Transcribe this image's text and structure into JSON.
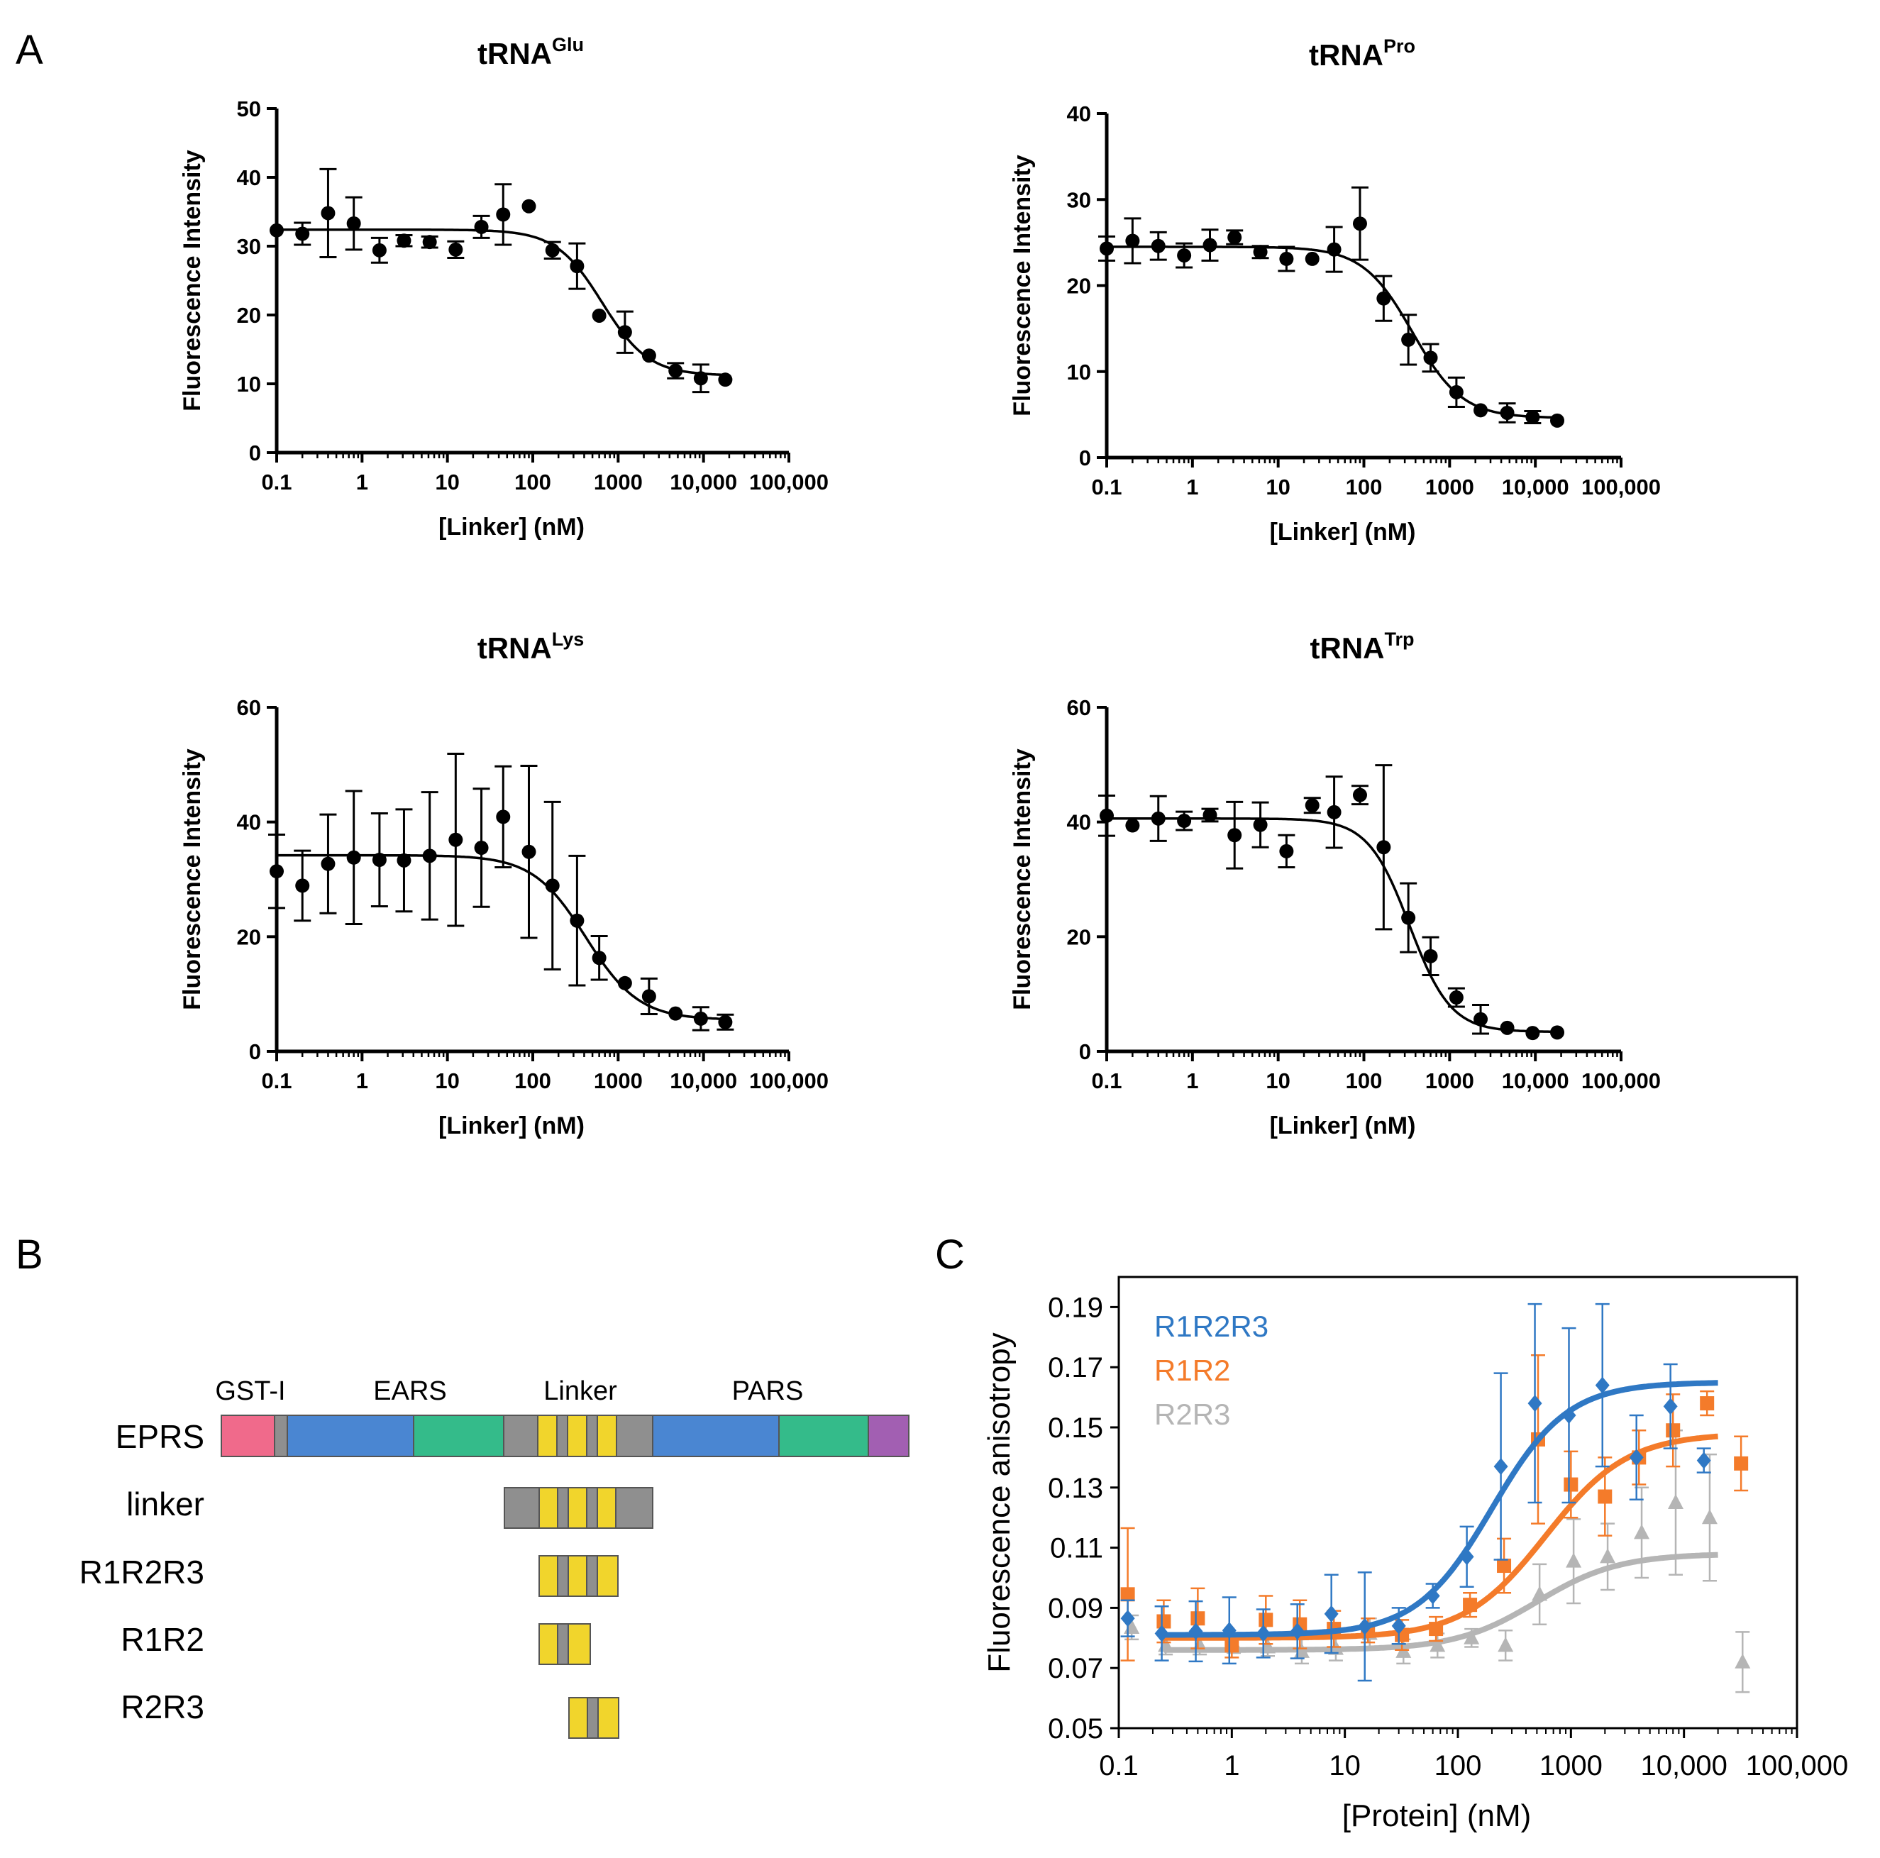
{
  "panel_labels": {
    "a": "A",
    "b": "B",
    "c": "C"
  },
  "colors": {
    "gst": "#f06a8b",
    "ears_blue": "#4a86d2",
    "ears_green": "#34bb8a",
    "linker_gray": "#8f8f8f",
    "repeat_yellow": "#f1d52c",
    "pars_purple": "#a25fb2",
    "r1r2r3": "#2f78c4",
    "r1r2": "#f47b2a",
    "r2r3": "#b5b5b5"
  },
  "chart_data": [
    {
      "id": "glu",
      "type": "scatter",
      "title": {
        "main": "tRNA",
        "sup": "Glu"
      },
      "xlabel": "[Linker] (nM)",
      "ylabel": "Fluorescence Intensity",
      "xscale": "log",
      "xlim": [
        0.1,
        100000
      ],
      "ylim": [
        0,
        50
      ],
      "yticks": [
        0,
        10,
        20,
        30,
        40,
        50
      ],
      "xticks": [
        0.1,
        1,
        10,
        100,
        1000,
        10000,
        100000
      ],
      "xtick_labels": [
        "0.1",
        "1",
        "10",
        "100",
        "1000",
        "10,000",
        "100,000"
      ],
      "points": [
        {
          "x": 0.1,
          "y": 32.3
        },
        {
          "x": 0.2,
          "y": 31.8,
          "err": 1.6
        },
        {
          "x": 0.4,
          "y": 34.8,
          "err": 6.4
        },
        {
          "x": 0.8,
          "y": 33.3,
          "err": 3.8
        },
        {
          "x": 1.6,
          "y": 29.4,
          "err": 1.8
        },
        {
          "x": 3.1,
          "y": 30.8,
          "err": 0.8
        },
        {
          "x": 6.2,
          "y": 30.6,
          "err": 0.8
        },
        {
          "x": 12.5,
          "y": 29.5,
          "err": 1.2
        },
        {
          "x": 25,
          "y": 32.8,
          "err": 1.6
        },
        {
          "x": 45,
          "y": 34.6,
          "err": 4.4
        },
        {
          "x": 90,
          "y": 35.8
        },
        {
          "x": 170,
          "y": 29.4,
          "err": 1.2
        },
        {
          "x": 330,
          "y": 27.1,
          "err": 3.3
        },
        {
          "x": 600,
          "y": 19.9
        },
        {
          "x": 1200,
          "y": 17.5,
          "err": 3.0
        },
        {
          "x": 2300,
          "y": 14.1
        },
        {
          "x": 4700,
          "y": 11.9,
          "err": 1.1
        },
        {
          "x": 9300,
          "y": 10.8,
          "err": 2.0
        },
        {
          "x": 18000,
          "y": 10.6
        }
      ],
      "fit": {
        "top": 32.4,
        "bottom": 11.2,
        "ic50": 650,
        "hill": 1.6
      }
    },
    {
      "id": "pro",
      "type": "scatter",
      "title": {
        "main": "tRNA",
        "sup": "Pro"
      },
      "xlabel": "[Linker] (nM)",
      "ylabel": "Fluorescence Intensity",
      "xscale": "log",
      "xlim": [
        0.1,
        100000
      ],
      "ylim": [
        0,
        40
      ],
      "yticks": [
        0,
        10,
        20,
        30,
        40
      ],
      "xticks": [
        0.1,
        1,
        10,
        100,
        1000,
        10000,
        100000
      ],
      "xtick_labels": [
        "0.1",
        "1",
        "10",
        "100",
        "1000",
        "10,000",
        "100,000"
      ],
      "points": [
        {
          "x": 0.1,
          "y": 24.3,
          "err": 1.4
        },
        {
          "x": 0.2,
          "y": 25.2,
          "err": 2.6
        },
        {
          "x": 0.4,
          "y": 24.6,
          "err": 1.6
        },
        {
          "x": 0.8,
          "y": 23.5,
          "err": 1.4
        },
        {
          "x": 1.6,
          "y": 24.7,
          "err": 1.8
        },
        {
          "x": 3.1,
          "y": 25.6,
          "err": 0.8
        },
        {
          "x": 6.2,
          "y": 23.9,
          "err": 0.7
        },
        {
          "x": 12.5,
          "y": 23.1,
          "err": 1.4
        },
        {
          "x": 25,
          "y": 23.1
        },
        {
          "x": 45,
          "y": 24.2,
          "err": 2.6
        },
        {
          "x": 90,
          "y": 27.2,
          "err": 4.2
        },
        {
          "x": 170,
          "y": 18.5,
          "err": 2.6
        },
        {
          "x": 330,
          "y": 13.7,
          "err": 2.9
        },
        {
          "x": 600,
          "y": 11.6,
          "err": 1.6
        },
        {
          "x": 1200,
          "y": 7.6,
          "err": 1.7
        },
        {
          "x": 2300,
          "y": 5.5
        },
        {
          "x": 4700,
          "y": 5.2,
          "err": 1.1
        },
        {
          "x": 9300,
          "y": 4.7,
          "err": 0.7
        },
        {
          "x": 18000,
          "y": 4.3
        }
      ],
      "fit": {
        "top": 24.5,
        "bottom": 4.6,
        "ic50": 370,
        "hill": 1.5
      }
    },
    {
      "id": "lys",
      "type": "scatter",
      "title": {
        "main": "tRNA",
        "sup": "Lys"
      },
      "xlabel": "[Linker] (nM)",
      "ylabel": "Fluorescence Intensity",
      "xscale": "log",
      "xlim": [
        0.1,
        100000
      ],
      "ylim": [
        0,
        60
      ],
      "yticks": [
        0,
        20,
        40,
        60
      ],
      "xticks": [
        0.1,
        1,
        10,
        100,
        1000,
        10000,
        100000
      ],
      "xtick_labels": [
        "0.1",
        "1",
        "10",
        "100",
        "1000",
        "10,000",
        "100,000"
      ],
      "points": [
        {
          "x": 0.1,
          "y": 31.4,
          "err": 6.4
        },
        {
          "x": 0.2,
          "y": 28.9,
          "err": 6.1
        },
        {
          "x": 0.4,
          "y": 32.7,
          "err": 8.6
        },
        {
          "x": 0.8,
          "y": 33.8,
          "err": 11.6
        },
        {
          "x": 1.6,
          "y": 33.4,
          "err": 8.1
        },
        {
          "x": 3.1,
          "y": 33.3,
          "err": 8.9
        },
        {
          "x": 6.2,
          "y": 34.1,
          "err": 11.1
        },
        {
          "x": 12.5,
          "y": 36.9,
          "err": 15.0
        },
        {
          "x": 25,
          "y": 35.5,
          "err": 10.3
        },
        {
          "x": 45,
          "y": 40.9,
          "err": 8.8
        },
        {
          "x": 90,
          "y": 34.8,
          "err": 15.0
        },
        {
          "x": 170,
          "y": 28.9,
          "err": 14.6
        },
        {
          "x": 330,
          "y": 22.8,
          "err": 11.3
        },
        {
          "x": 600,
          "y": 16.3,
          "err": 3.8
        },
        {
          "x": 1200,
          "y": 11.9
        },
        {
          "x": 2300,
          "y": 9.6,
          "err": 3.1
        },
        {
          "x": 4700,
          "y": 6.6
        },
        {
          "x": 9300,
          "y": 5.7,
          "err": 2.0
        },
        {
          "x": 18000,
          "y": 5.1,
          "err": 1.3
        }
      ],
      "fit": {
        "top": 34.2,
        "bottom": 5.5,
        "ic50": 420,
        "hill": 1.4
      }
    },
    {
      "id": "trp",
      "type": "scatter",
      "title": {
        "main": "tRNA",
        "sup": "Trp"
      },
      "xlabel": "[Linker] (nM)",
      "ylabel": "Fluorescence Intensity",
      "xscale": "log",
      "xlim": [
        0.1,
        100000
      ],
      "ylim": [
        0,
        60
      ],
      "yticks": [
        0,
        20,
        40,
        60
      ],
      "xticks": [
        0.1,
        1,
        10,
        100,
        1000,
        10000,
        100000
      ],
      "xtick_labels": [
        "0.1",
        "1",
        "10",
        "100",
        "1000",
        "10,000",
        "100,000"
      ],
      "points": [
        {
          "x": 0.1,
          "y": 41.1,
          "err": 3.5
        },
        {
          "x": 0.2,
          "y": 39.4
        },
        {
          "x": 0.4,
          "y": 40.6,
          "err": 3.9
        },
        {
          "x": 0.8,
          "y": 40.2,
          "err": 1.6
        },
        {
          "x": 1.6,
          "y": 41.2,
          "err": 1.1
        },
        {
          "x": 3.1,
          "y": 37.7,
          "err": 5.8
        },
        {
          "x": 6.2,
          "y": 39.5,
          "err": 3.9
        },
        {
          "x": 12.5,
          "y": 34.9,
          "err": 2.8
        },
        {
          "x": 25,
          "y": 42.9,
          "err": 1.3
        },
        {
          "x": 45,
          "y": 41.7,
          "err": 6.2
        },
        {
          "x": 90,
          "y": 44.7,
          "err": 1.6
        },
        {
          "x": 170,
          "y": 35.6,
          "err": 14.3
        },
        {
          "x": 330,
          "y": 23.3,
          "err": 6.0
        },
        {
          "x": 600,
          "y": 16.6,
          "err": 3.3
        },
        {
          "x": 1200,
          "y": 9.4,
          "err": 1.6
        },
        {
          "x": 2300,
          "y": 5.6,
          "err": 2.5
        },
        {
          "x": 4700,
          "y": 4.1
        },
        {
          "x": 9300,
          "y": 3.2
        },
        {
          "x": 18000,
          "y": 3.3
        }
      ],
      "fit": {
        "top": 40.6,
        "bottom": 3.4,
        "ic50": 340,
        "hill": 1.8
      }
    },
    {
      "id": "anisotropy",
      "type": "scatter",
      "xlabel": "[Protein] (nM)",
      "ylabel": "Fluorescence anisotropy",
      "xscale": "log",
      "xlim": [
        0.1,
        100000
      ],
      "ylim": [
        0.05,
        0.2
      ],
      "yticks": [
        0.05,
        0.07,
        0.09,
        0.11,
        0.13,
        0.15,
        0.17,
        0.19
      ],
      "ytick_labels": [
        "0.05",
        "0.07",
        "0.09",
        "0.11",
        "0.13",
        "0.15",
        "0.17",
        "0.19"
      ],
      "xticks": [
        0.1,
        1,
        10,
        100,
        1000,
        10000,
        100000
      ],
      "xtick_labels": [
        "0.1",
        "1",
        "10",
        "100",
        "1000",
        "10,000",
        "100,000"
      ],
      "series": [
        {
          "name": "R1R2R3",
          "color": "#2f78c4",
          "marker": "diamond",
          "fit": {
            "bottom": 0.081,
            "top": 0.165,
            "ec50": 200,
            "hill": 1.3
          },
          "points": [
            {
              "x": 0.12,
              "y": 0.0865,
              "err": 0.006
            },
            {
              "x": 0.24,
              "y": 0.0815,
              "err": 0.009
            },
            {
              "x": 0.48,
              "y": 0.0822,
              "err": 0.01
            },
            {
              "x": 0.95,
              "y": 0.0825,
              "err": 0.011
            },
            {
              "x": 1.9,
              "y": 0.0815,
              "err": 0.008
            },
            {
              "x": 3.8,
              "y": 0.0822,
              "err": 0.009
            },
            {
              "x": 7.6,
              "y": 0.088,
              "err": 0.013
            },
            {
              "x": 15,
              "y": 0.0838,
              "err": 0.018
            },
            {
              "x": 30,
              "y": 0.084,
              "err": 0.006
            },
            {
              "x": 60,
              "y": 0.094,
              "err": 0.004
            },
            {
              "x": 120,
              "y": 0.107,
              "err": 0.01
            },
            {
              "x": 240,
              "y": 0.137,
              "err": 0.031
            },
            {
              "x": 480,
              "y": 0.158,
              "err": 0.033
            },
            {
              "x": 960,
              "y": 0.154,
              "err": 0.029
            },
            {
              "x": 1900,
              "y": 0.164,
              "err": 0.027
            },
            {
              "x": 3800,
              "y": 0.14,
              "err": 0.014
            },
            {
              "x": 7600,
              "y": 0.157,
              "err": 0.014
            },
            {
              "x": 15000,
              "y": 0.139,
              "err": 0.004
            }
          ]
        },
        {
          "name": "R1R2",
          "color": "#f47b2a",
          "marker": "square",
          "fit": {
            "bottom": 0.08,
            "top": 0.148,
            "ec50": 600,
            "hill": 1.2
          },
          "points": [
            {
              "x": 0.12,
              "y": 0.0945,
              "err": 0.022
            },
            {
              "x": 0.25,
              "y": 0.0855,
              "err": 0.007
            },
            {
              "x": 0.5,
              "y": 0.0865,
              "err": 0.01
            },
            {
              "x": 1.0,
              "y": 0.0775,
              "err": 0.004
            },
            {
              "x": 2.0,
              "y": 0.086,
              "err": 0.008
            },
            {
              "x": 4.0,
              "y": 0.0845,
              "err": 0.008
            },
            {
              "x": 8.0,
              "y": 0.083,
              "err": 0.006
            },
            {
              "x": 16,
              "y": 0.0825,
              "err": 0.004
            },
            {
              "x": 32,
              "y": 0.081,
              "err": 0.005
            },
            {
              "x": 64,
              "y": 0.083,
              "err": 0.004
            },
            {
              "x": 128,
              "y": 0.091,
              "err": 0.004
            },
            {
              "x": 256,
              "y": 0.104,
              "err": 0.009
            },
            {
              "x": 512,
              "y": 0.146,
              "err": 0.028
            },
            {
              "x": 1000,
              "y": 0.131,
              "err": 0.011
            },
            {
              "x": 2000,
              "y": 0.127,
              "err": 0.013
            },
            {
              "x": 4000,
              "y": 0.14,
              "err": 0.009
            },
            {
              "x": 8000,
              "y": 0.149,
              "err": 0.012
            },
            {
              "x": 16000,
              "y": 0.158,
              "err": 0.004
            },
            {
              "x": 32000,
              "y": 0.138,
              "err": 0.009
            }
          ]
        },
        {
          "name": "R2R3",
          "color": "#b5b5b5",
          "marker": "triangle",
          "fit": {
            "bottom": 0.076,
            "top": 0.108,
            "ec50": 500,
            "hill": 1.2
          },
          "points": [
            {
              "x": 0.13,
              "y": 0.0835,
              "err": 0.004
            },
            {
              "x": 0.26,
              "y": 0.0775,
              "err": 0.003
            },
            {
              "x": 0.52,
              "y": 0.0775,
              "err": 0.003
            },
            {
              "x": 1.04,
              "y": 0.078,
              "err": 0.003
            },
            {
              "x": 2.08,
              "y": 0.077,
              "err": 0.003
            },
            {
              "x": 4.16,
              "y": 0.0755,
              "err": 0.004
            },
            {
              "x": 8.32,
              "y": 0.0765,
              "err": 0.004
            },
            {
              "x": 16.6,
              "y": 0.0815,
              "err": 0.005
            },
            {
              "x": 33,
              "y": 0.0755,
              "err": 0.004
            },
            {
              "x": 66,
              "y": 0.0775,
              "err": 0.004
            },
            {
              "x": 132,
              "y": 0.08,
              "err": 0.003
            },
            {
              "x": 264,
              "y": 0.0775,
              "err": 0.005
            },
            {
              "x": 528,
              "y": 0.0945,
              "err": 0.01
            },
            {
              "x": 1056,
              "y": 0.1055,
              "err": 0.014
            },
            {
              "x": 2112,
              "y": 0.107,
              "err": 0.011
            },
            {
              "x": 4224,
              "y": 0.115,
              "err": 0.015
            },
            {
              "x": 8448,
              "y": 0.125,
              "err": 0.024
            },
            {
              "x": 16896,
              "y": 0.12,
              "err": 0.021
            },
            {
              "x": 33000,
              "y": 0.072,
              "err": 0.01
            }
          ]
        }
      ]
    }
  ],
  "diagram": {
    "domains": [
      "GST-I",
      "EARS",
      "Linker",
      "PARS"
    ],
    "constructs": [
      "EPRS",
      "linker",
      "R1R2R3",
      "R1R2",
      "R2R3"
    ]
  }
}
